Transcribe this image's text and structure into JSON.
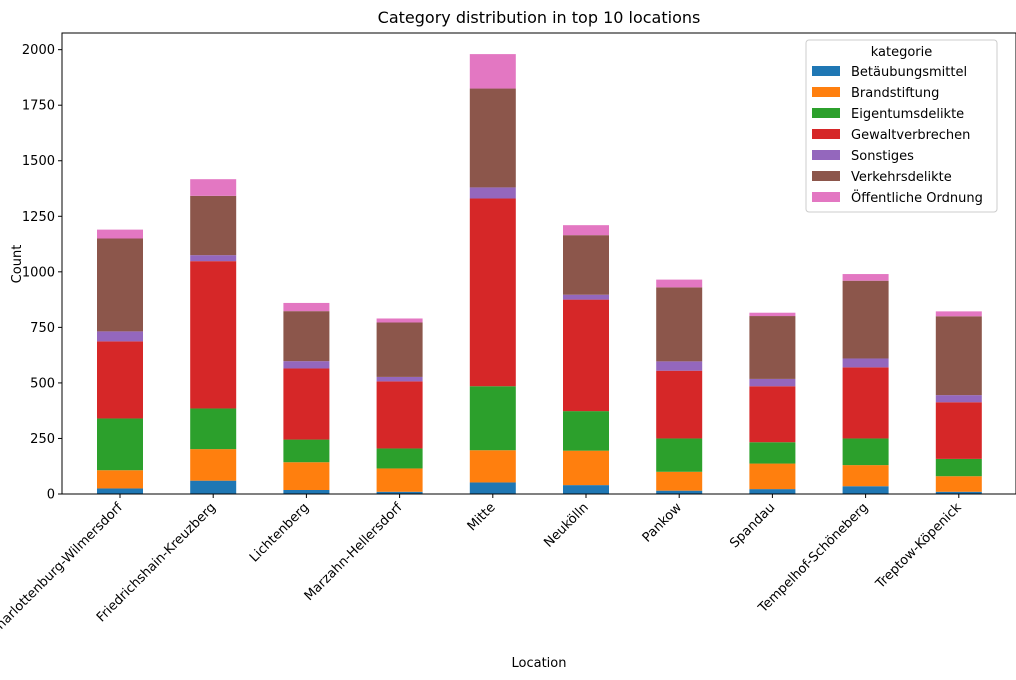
{
  "chart_data": {
    "type": "bar",
    "stacked": true,
    "title": "Category distribution in top 10 locations",
    "xlabel": "Location",
    "ylabel": "Count",
    "ylim": [
      0,
      2075
    ],
    "yticks": [
      0,
      250,
      500,
      750,
      1000,
      1250,
      1500,
      1750,
      2000
    ],
    "grid": false,
    "legend": {
      "title": "kategorie",
      "position": "top-right"
    },
    "categories": [
      "Charlottenburg-Wilmersdorf",
      "Friedrichshain-Kreuzberg",
      "Lichtenberg",
      "Marzahn-Hellersdorf",
      "Mitte",
      "Neukölln",
      "Pankow",
      "Spandau",
      "Tempelhof-Schöneberg",
      "Treptow-Köpenick"
    ],
    "series": [
      {
        "name": "Betäubungsmittel",
        "color": "#1f77b4",
        "values": [
          25,
          60,
          18,
          10,
          52,
          40,
          15,
          22,
          35,
          10
        ]
      },
      {
        "name": "Brandstiftung",
        "color": "#ff7f0e",
        "values": [
          82,
          142,
          125,
          105,
          145,
          155,
          85,
          115,
          95,
          70
        ]
      },
      {
        "name": "Eigentumsdelikte",
        "color": "#2ca02c",
        "values": [
          233,
          183,
          102,
          90,
          288,
          178,
          150,
          96,
          120,
          78
        ]
      },
      {
        "name": "Gewaltverbrechen",
        "color": "#d62728",
        "values": [
          347,
          663,
          320,
          302,
          845,
          502,
          305,
          252,
          320,
          255
        ]
      },
      {
        "name": "Sonstiges",
        "color": "#9467bd",
        "values": [
          45,
          27,
          33,
          20,
          50,
          22,
          42,
          33,
          40,
          32
        ]
      },
      {
        "name": "Verkehrsdelikte",
        "color": "#8c564b",
        "values": [
          418,
          267,
          225,
          245,
          445,
          268,
          333,
          283,
          350,
          355
        ]
      },
      {
        "name": "Öffentliche Ordnung",
        "color": "#e377c2",
        "values": [
          40,
          75,
          37,
          18,
          155,
          45,
          35,
          15,
          30,
          22
        ]
      }
    ]
  }
}
